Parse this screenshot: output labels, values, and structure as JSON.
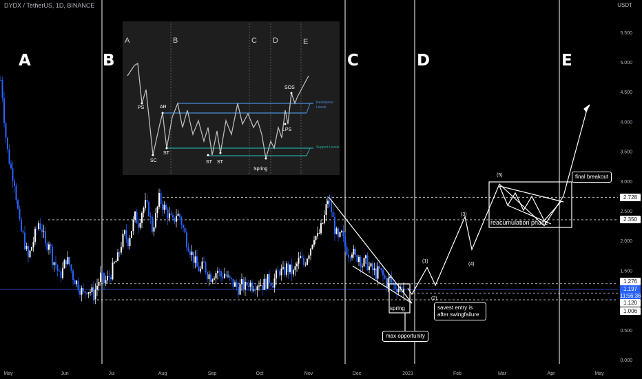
{
  "header": {
    "symbol": "DYDX / TetherUS, 1D, BINANCE",
    "currency": "USDT"
  },
  "phase_labels": [
    "A",
    "B",
    "C",
    "D",
    "E"
  ],
  "price_tags": {
    "p2728": "2.728",
    "p2350": "2.350",
    "p1276": "1.276",
    "current_price": "1.197",
    "countdown": "11:56:36",
    "p1120": "1.120",
    "p1006": "1.006"
  },
  "annotations": {
    "spring": "spring",
    "max_opportunity": "max opportunity",
    "safest_entry": "savest entry is after swingfailure",
    "reaccumulation": "reacumulation phase",
    "final_breakout": "final breakout",
    "waves": [
      "(1)",
      "(2)",
      "(3)",
      "(4)",
      "(5)"
    ]
  },
  "inset": {
    "phase_labels": [
      "A",
      "B",
      "C",
      "D",
      "E"
    ],
    "event_labels": [
      "PS",
      "AR",
      "SC",
      "ST",
      "ST",
      "ST",
      "Spring",
      "LPS",
      "SOS"
    ],
    "resistance_label": "Resistance Levels",
    "support_label": "Support Levels"
  },
  "colors": {
    "up": "#ffffff",
    "down": "#2962ff",
    "accent": "#2962ff",
    "resistance": "#4a90d9",
    "support": "#26a69a"
  },
  "chart_data": {
    "type": "candlestick",
    "title": "DYDX / TetherUS, 1D, BINANCE",
    "currency": "USDT",
    "x_ticks": [
      "May",
      "Jun",
      "Jul",
      "Aug",
      "Sep",
      "Oct",
      "Nov",
      "Dec",
      "2023",
      "Feb",
      "Mar",
      "Apr",
      "May"
    ],
    "y_ticks": [
      0.0,
      0.5,
      1.0,
      1.5,
      2.0,
      2.5,
      3.0,
      3.5,
      4.0,
      4.5,
      5.0,
      5.5
    ],
    "ylim": [
      0,
      5.8
    ],
    "horizontal_levels": [
      2.728,
      2.35,
      1.276,
      1.12,
      1.006
    ],
    "current_price": 1.197,
    "price_path": [
      [
        0,
        4.7
      ],
      [
        3,
        4.4
      ],
      [
        6,
        3.9
      ],
      [
        10,
        3.5
      ],
      [
        15,
        3.2
      ],
      [
        20,
        3.0
      ],
      [
        24,
        2.6
      ],
      [
        28,
        2.2
      ],
      [
        32,
        2.1
      ],
      [
        36,
        1.9
      ],
      [
        40,
        1.7
      ],
      [
        45,
        1.9
      ],
      [
        50,
        2.1
      ],
      [
        55,
        2.3
      ],
      [
        60,
        2.2
      ],
      [
        65,
        1.9
      ],
      [
        70,
        2.0
      ],
      [
        75,
        1.7
      ],
      [
        80,
        1.6
      ],
      [
        85,
        1.4
      ],
      [
        90,
        1.5
      ],
      [
        95,
        1.7
      ],
      [
        100,
        1.6
      ],
      [
        105,
        1.4
      ],
      [
        110,
        1.3
      ],
      [
        115,
        1.2
      ],
      [
        120,
        1.1
      ],
      [
        125,
        1.2
      ],
      [
        130,
        1.15
      ],
      [
        135,
        1.1
      ],
      [
        140,
        1.25
      ],
      [
        145,
        1.4
      ],
      [
        150,
        1.3
      ],
      [
        155,
        1.35
      ],
      [
        160,
        1.45
      ],
      [
        165,
        1.6
      ],
      [
        170,
        1.7
      ],
      [
        175,
        1.95
      ],
      [
        180,
        2.1
      ],
      [
        185,
        2.0
      ],
      [
        190,
        2.2
      ],
      [
        195,
        2.4
      ],
      [
        200,
        2.3
      ],
      [
        205,
        2.5
      ],
      [
        210,
        2.6
      ],
      [
        215,
        2.5
      ],
      [
        220,
        2.2
      ],
      [
        225,
        2.4
      ],
      [
        230,
        2.7
      ],
      [
        235,
        2.6
      ],
      [
        240,
        2.5
      ],
      [
        245,
        2.4
      ],
      [
        250,
        2.3
      ],
      [
        255,
        2.45
      ],
      [
        260,
        2.4
      ],
      [
        265,
        2.2
      ],
      [
        270,
        2.0
      ],
      [
        275,
        1.85
      ],
      [
        280,
        1.7
      ],
      [
        285,
        1.55
      ],
      [
        290,
        1.5
      ],
      [
        295,
        1.6
      ],
      [
        300,
        1.45
      ],
      [
        305,
        1.4
      ],
      [
        310,
        1.45
      ],
      [
        315,
        1.5
      ],
      [
        320,
        1.4
      ],
      [
        325,
        1.45
      ],
      [
        330,
        1.35
      ],
      [
        335,
        1.3
      ],
      [
        340,
        1.25
      ],
      [
        345,
        1.2
      ],
      [
        350,
        1.25
      ],
      [
        355,
        1.22
      ],
      [
        360,
        1.3
      ],
      [
        365,
        1.25
      ],
      [
        370,
        1.28
      ],
      [
        375,
        1.3
      ],
      [
        380,
        1.25
      ],
      [
        385,
        1.3
      ],
      [
        390,
        1.35
      ],
      [
        395,
        1.3
      ],
      [
        400,
        1.4
      ],
      [
        405,
        1.5
      ],
      [
        410,
        1.45
      ],
      [
        415,
        1.55
      ],
      [
        420,
        1.5
      ],
      [
        425,
        1.45
      ],
      [
        430,
        1.6
      ],
      [
        435,
        1.7
      ],
      [
        440,
        1.6
      ],
      [
        445,
        1.75
      ],
      [
        450,
        1.9
      ],
      [
        455,
        2.1
      ],
      [
        460,
        2.05
      ],
      [
        465,
        2.2
      ],
      [
        470,
        2.4
      ],
      [
        475,
        2.7
      ],
      [
        480,
        2.5
      ],
      [
        485,
        2.2
      ],
      [
        490,
        2.0
      ],
      [
        495,
        2.1
      ],
      [
        500,
        1.9
      ],
      [
        505,
        1.8
      ],
      [
        510,
        1.85
      ],
      [
        515,
        1.7
      ],
      [
        520,
        1.75
      ],
      [
        525,
        1.6
      ],
      [
        530,
        1.65
      ],
      [
        535,
        1.55
      ],
      [
        540,
        1.5
      ],
      [
        545,
        1.45
      ],
      [
        550,
        1.5
      ],
      [
        555,
        1.4
      ],
      [
        560,
        1.3
      ],
      [
        565,
        1.35
      ],
      [
        570,
        1.25
      ],
      [
        575,
        1.22
      ],
      [
        580,
        1.2
      ],
      [
        585,
        1.197
      ]
    ],
    "projection_path": [
      [
        0,
        1.2
      ],
      [
        1,
        1.1
      ],
      [
        2,
        1.55
      ],
      [
        3,
        1.25
      ],
      [
        4,
        2.4
      ],
      [
        5,
        1.85
      ],
      [
        6,
        2.95
      ],
      [
        7,
        2.25
      ],
      [
        8,
        2.75
      ],
      [
        9,
        4.2
      ]
    ]
  }
}
